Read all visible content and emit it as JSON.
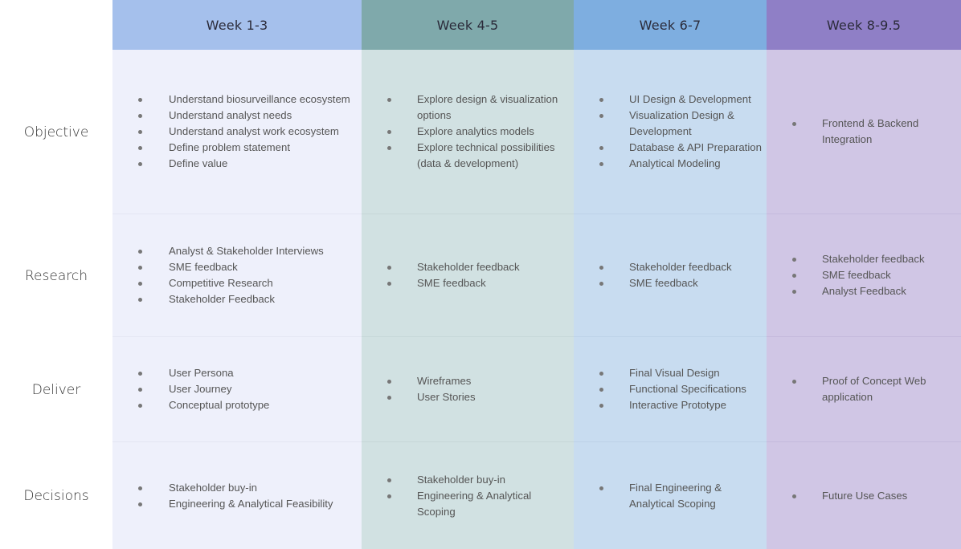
{
  "headers": [
    "Week 1-3",
    "Week 4-5",
    "Week 6-7",
    "Week 8-9.5"
  ],
  "rows": [
    {
      "label": "Objective",
      "cells": [
        [
          "Understand biosurveillance ecosystem",
          "Understand analyst needs",
          "Understand analyst work ecosystem",
          "Define problem statement",
          "Define value"
        ],
        [
          "Explore design & visualization options",
          "Explore analytics models",
          "Explore technical possibilities (data & development)"
        ],
        [
          "UI Design & Development",
          "Visualization Design & Development",
          "Database & API Preparation",
          "Analytical Modeling"
        ],
        [
          "Frontend & Backend Integration"
        ]
      ]
    },
    {
      "label": "Research",
      "cells": [
        [
          "Analyst & Stakeholder Interviews",
          "SME feedback",
          "Competitive Research",
          "Stakeholder Feedback"
        ],
        [
          "Stakeholder feedback",
          "SME feedback"
        ],
        [
          "Stakeholder feedback",
          "SME feedback"
        ],
        [
          "Stakeholder feedback",
          "SME feedback",
          "Analyst Feedback"
        ]
      ]
    },
    {
      "label": "Deliver",
      "cells": [
        [
          "User Persona",
          "User Journey",
          "Conceptual prototype"
        ],
        [
          "Wireframes",
          "User Stories"
        ],
        [
          "Final Visual Design",
          "Functional Specifications",
          "Interactive Prototype"
        ],
        [
          "Proof of Concept Web application"
        ]
      ]
    },
    {
      "label": "Decisions",
      "cells": [
        [
          "Stakeholder buy-in",
          "Engineering & Analytical Feasibility"
        ],
        [
          "Stakeholder buy-in",
          "Engineering & Analytical Scoping"
        ],
        [
          "Final Engineering & Analytical Scoping"
        ],
        [
          "Future Use Cases"
        ]
      ]
    }
  ],
  "colors": {
    "week1_header": "#a5c0ec",
    "week2_header": "#7fa9ab",
    "week3_header": "#7eaee0",
    "week4_header": "#8f7fc6",
    "week1_body": "#eef0fb",
    "week2_body": "#d1e1e2",
    "week3_body": "#c8dcf0",
    "week4_body": "#d0c6e5"
  }
}
